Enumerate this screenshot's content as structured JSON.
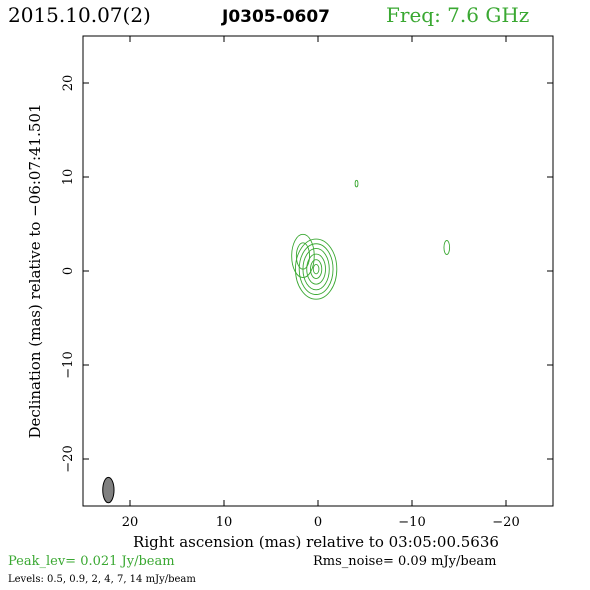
{
  "header": {
    "date": "2015.10.07(2)",
    "source": "J0305-0607",
    "freq": "Freq: 7.6 GHz"
  },
  "footer": {
    "peak": "Peak_lev=  0.021 Jy/beam",
    "rms": "Rms_noise= 0.09 mJy/beam",
    "levels": "Levels: 0.5, 0.9,   2,   4,   7,  14 mJy/beam"
  },
  "colors": {
    "contour": "#3aa832",
    "header_accent": "#3aa832",
    "beam_fill": "#808080"
  },
  "chart_data": {
    "type": "contour",
    "xlabel": "Right ascension (mas) relative to 03:05:00.5636",
    "ylabel": "Declination (mas) relative to −06:07:41.501",
    "xlim": [
      25,
      -25
    ],
    "ylim": [
      -25,
      25
    ],
    "xticks": [
      20,
      10,
      0,
      -10,
      -20
    ],
    "yticks": [
      20,
      10,
      0,
      -10,
      -20
    ],
    "xtick_labels": [
      "20",
      "10",
      "0",
      "−10",
      "−20"
    ],
    "ytick_labels": [
      "20",
      "10",
      "0",
      "−10",
      "−20"
    ],
    "contour_levels_mJy": [
      0.5,
      0.9,
      2,
      4,
      7,
      14
    ],
    "components": [
      {
        "x": 0.2,
        "y": 0.2,
        "contours": [
          {
            "rx": 2.2,
            "ry": 3.2
          },
          {
            "rx": 1.8,
            "ry": 2.7
          },
          {
            "rx": 1.4,
            "ry": 2.2
          },
          {
            "rx": 1.0,
            "ry": 1.6
          },
          {
            "rx": 0.6,
            "ry": 1.0
          },
          {
            "rx": 0.3,
            "ry": 0.5
          }
        ]
      },
      {
        "x": 1.6,
        "y": 1.6,
        "contours": [
          {
            "rx": 1.2,
            "ry": 2.3
          },
          {
            "rx": 0.7,
            "ry": 1.4
          }
        ]
      },
      {
        "x": -4.1,
        "y": 9.3,
        "contours": [
          {
            "rx": 0.15,
            "ry": 0.35
          }
        ]
      },
      {
        "x": -13.7,
        "y": 2.5,
        "contours": [
          {
            "rx": 0.3,
            "ry": 0.75
          }
        ]
      }
    ],
    "beam": {
      "x": 22.3,
      "y": -23.3,
      "bmaj": 2.7,
      "bmin": 1.2,
      "pa": 0
    }
  }
}
